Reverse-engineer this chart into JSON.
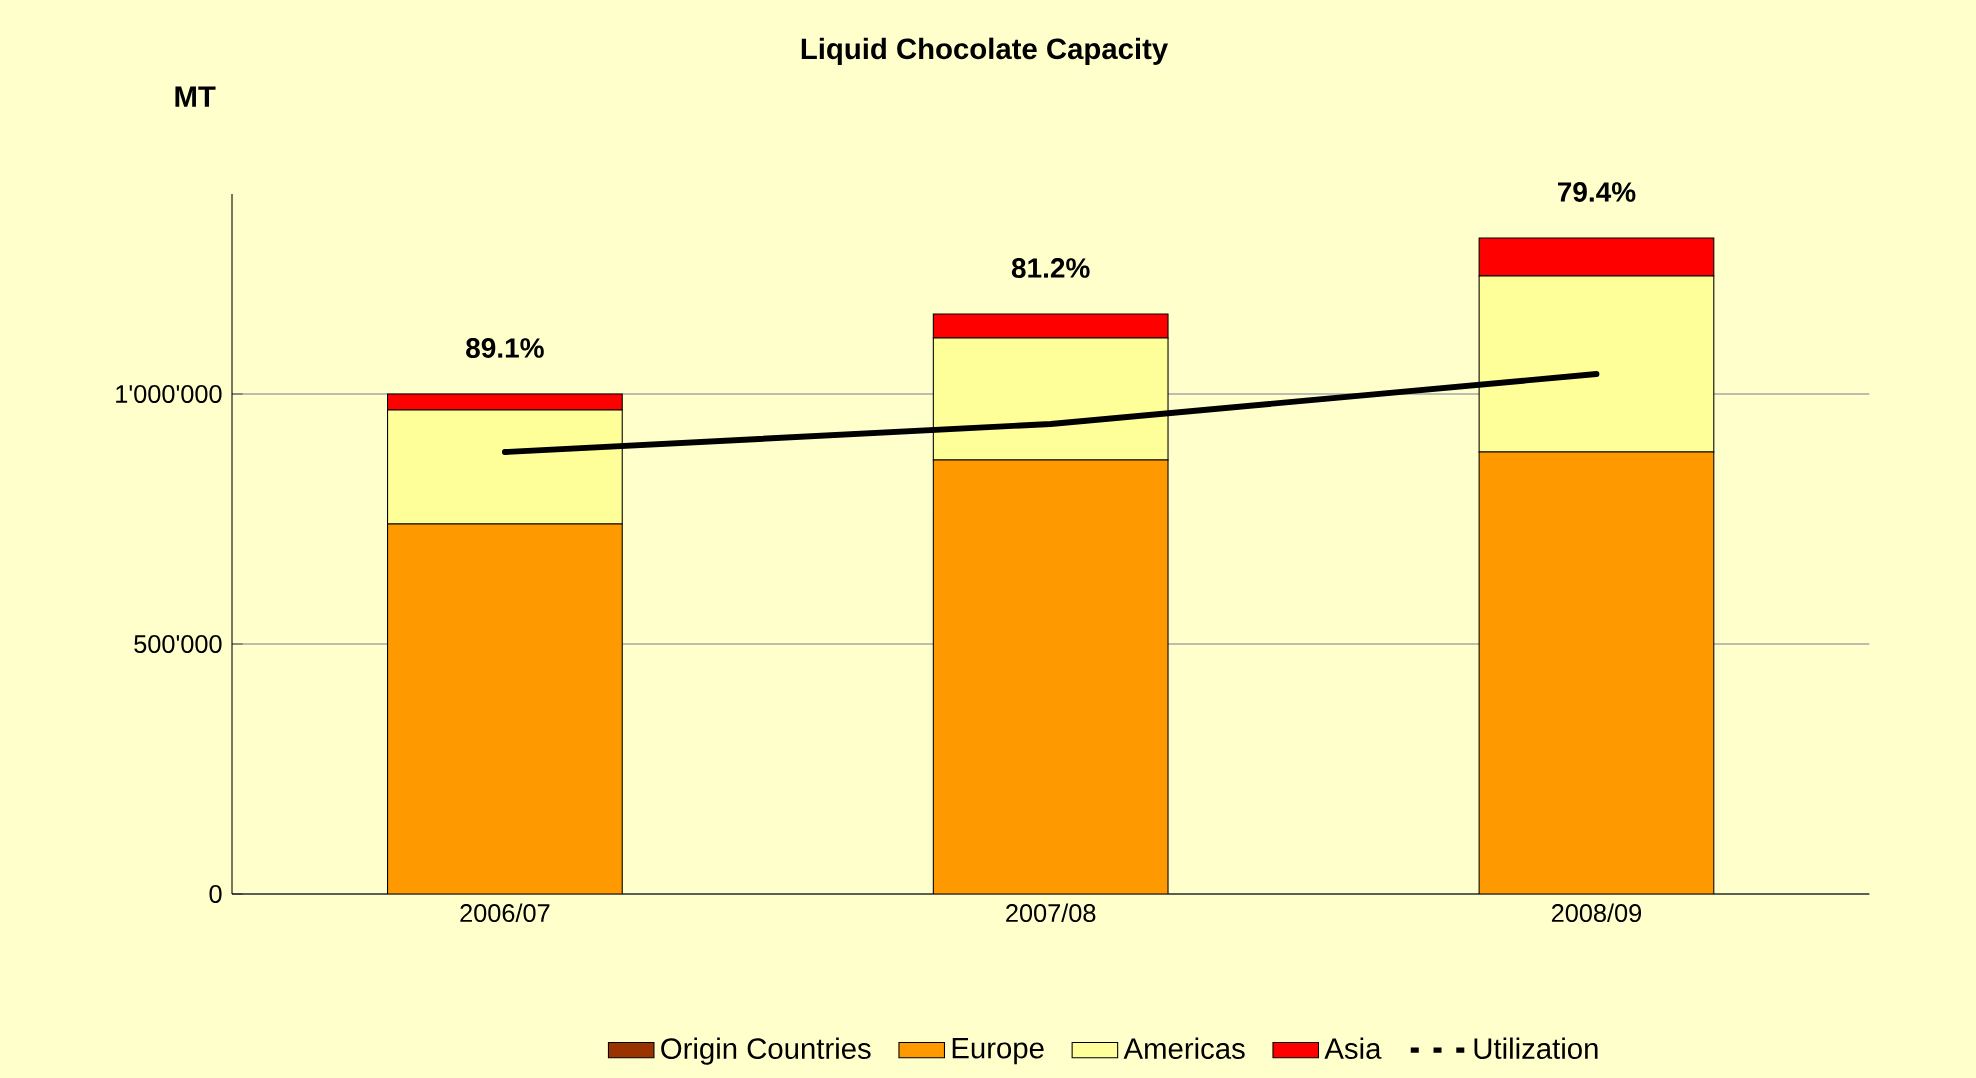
{
  "chart_data": {
    "type": "bar",
    "title": "Liquid Chocolate Capacity",
    "ylabel": "MT",
    "categories": [
      "2006/07",
      "2007/08",
      "2008/09"
    ],
    "stacked": true,
    "series": [
      {
        "name": "Origin Countries",
        "color": "#993300",
        "values": [
          0,
          0,
          0
        ]
      },
      {
        "name": "Europe",
        "color": "#ff9900",
        "values": [
          740000,
          868000,
          884000
        ]
      },
      {
        "name": "Americas",
        "color": "#ffff99",
        "values": [
          228000,
          244000,
          352000
        ]
      },
      {
        "name": "Asia",
        "color": "#ff0000",
        "values": [
          32000,
          48000,
          76000
        ]
      },
      {
        "name": "Utilization",
        "type": "line",
        "color": "#000000",
        "values": [
          884000,
          940000,
          1040000
        ]
      }
    ],
    "annotations": [
      {
        "text": "89.1%",
        "x": "2006/07",
        "y": 1000000
      },
      {
        "text": "81.2%",
        "x": "2007/08",
        "y": 1160000
      },
      {
        "text": "79.4%",
        "x": "2008/09",
        "y": 1312000
      }
    ],
    "ylim": [
      0,
      1400000
    ],
    "yticks": [
      0,
      {
        "value": 500000,
        "label": "500'000"
      },
      {
        "value": 1000000,
        "label": "1'000'000"
      }
    ],
    "grid": "y",
    "legend": "bottom"
  }
}
